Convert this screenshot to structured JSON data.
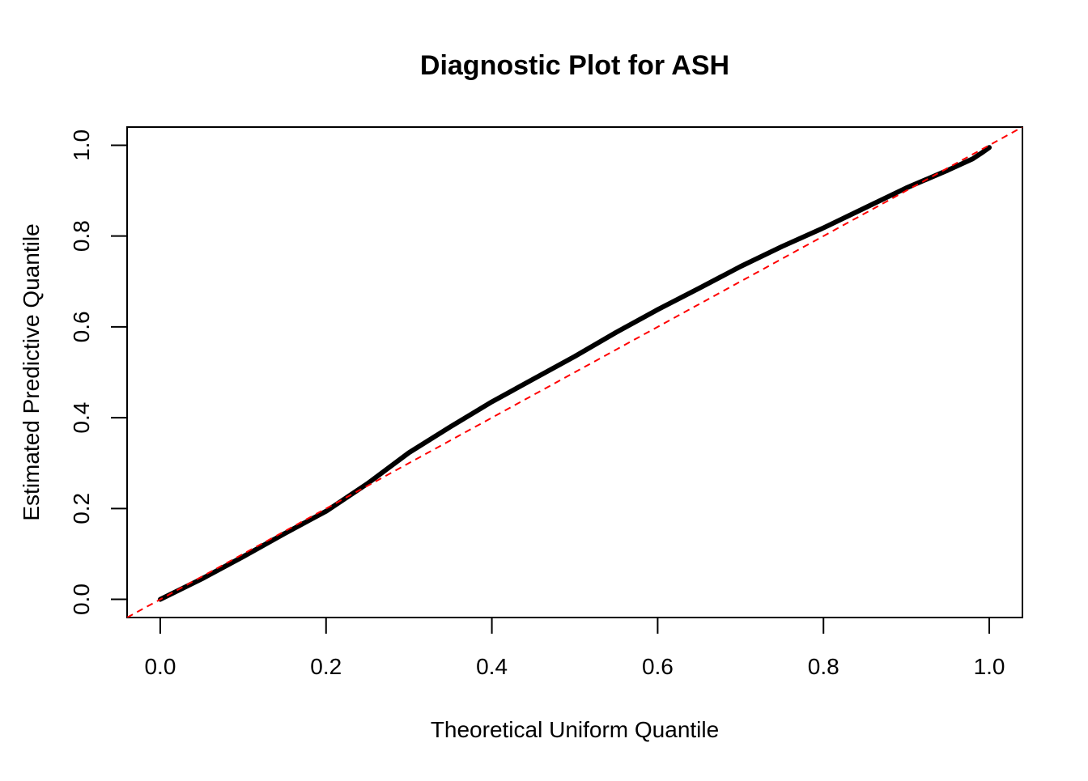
{
  "chart_data": {
    "type": "line",
    "title": "Diagnostic Plot for ASH",
    "x_label": "Theoretical Uniform Quantile",
    "y_label": "Estimated Predictive Quantile",
    "x": [
      0,
      0.05,
      0.1,
      0.15,
      0.2,
      0.25,
      0.3,
      0.35,
      0.4,
      0.45,
      0.5,
      0.55,
      0.6,
      0.65,
      0.7,
      0.75,
      0.8,
      0.85,
      0.9,
      0.95,
      0.98,
      0.99,
      1.0
    ],
    "values": [
      0,
      0.045,
      0.094,
      0.145,
      0.194,
      0.255,
      0.323,
      0.38,
      0.435,
      0.485,
      0.535,
      0.588,
      0.638,
      0.685,
      0.733,
      0.777,
      0.818,
      0.862,
      0.906,
      0.945,
      0.97,
      0.982,
      0.995
    ],
    "color": "#000000",
    "xlim": [
      -0.04,
      1.04
    ],
    "ylim": [
      -0.04,
      1.04
    ],
    "xticks": [
      {
        "value": 0,
        "label": "0.0"
      },
      0.2,
      0.4,
      0.6,
      0.8,
      {
        "value": 1,
        "label": "1.0"
      }
    ],
    "yticks": [
      {
        "value": 0,
        "label": "0.0"
      },
      0.2,
      0.4,
      0.6,
      0.8,
      {
        "value": 1,
        "label": "1.0"
      }
    ],
    "reference_line": {
      "intercept": 0,
      "slope": 1,
      "color": "#ff0000"
    }
  }
}
